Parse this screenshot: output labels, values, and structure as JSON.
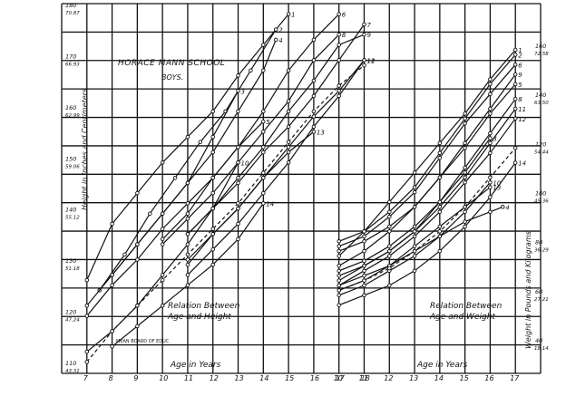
{
  "chart_data": {
    "type": "line",
    "title": "HORACE MANN SCHOOL",
    "subtitle": "BOYS.",
    "left_panel_label": [
      "Relation Between",
      "Age and Height"
    ],
    "right_panel_label": [
      "Relation Between",
      "Age and Weight"
    ],
    "small_note": "MEAN BOARD OF EDUC",
    "xlabel_left": "Age in Years",
    "xlabel_right": "Age in Years",
    "ylabel_left": "Height in Inches and Centimeters",
    "ylabel_right": "Weight in Pounds and Kilograms",
    "x_ticks_left": [
      "7",
      "8",
      "9",
      "10",
      "11",
      "12",
      "13",
      "14",
      "15",
      "16",
      "17",
      "18"
    ],
    "x_ticks_right": [
      "10",
      "11",
      "12",
      "13",
      "14",
      "15",
      "16",
      "17"
    ],
    "height_ticks": [
      {
        "cm": "110",
        "in": "43.31"
      },
      {
        "cm": "120",
        "in": "47.24"
      },
      {
        "cm": "130",
        "in": "51.18"
      },
      {
        "cm": "140",
        "in": "55.12"
      },
      {
        "cm": "150",
        "in": "59.06"
      },
      {
        "cm": "160",
        "in": "62.99"
      },
      {
        "cm": "170",
        "in": "66.93"
      },
      {
        "cm": "180",
        "in": "70.87"
      }
    ],
    "weight_ticks": [
      {
        "lb": "40",
        "kg": "18.14"
      },
      {
        "lb": "60",
        "kg": "27.21"
      },
      {
        "lb": "80",
        "kg": "36.29"
      },
      {
        "lb": "100",
        "kg": "45.36"
      },
      {
        "lb": "120",
        "kg": "54.44"
      },
      {
        "lb": "140",
        "kg": "63.50"
      },
      {
        "lb": "160",
        "kg": "72.58"
      }
    ],
    "height_curves": [
      {
        "label": "1",
        "dashed": false,
        "age": [
          7,
          8,
          9,
          10,
          11,
          12,
          13,
          14,
          15
        ],
        "height_cm": [
          127,
          138,
          144,
          150,
          155,
          160,
          167,
          173,
          179
        ]
      },
      {
        "label": "2",
        "dashed": false,
        "age": [
          7.5,
          8.5,
          9.5,
          10.5,
          11.5,
          12.5,
          13.5,
          14.5
        ],
        "height_cm": [
          125,
          132,
          140,
          147,
          154,
          160,
          168,
          176
        ]
      },
      {
        "label": "3",
        "dashed": false,
        "age": [
          7,
          8,
          9,
          10,
          11,
          12,
          13
        ],
        "height_cm": [
          122,
          128,
          134,
          140,
          146,
          155,
          164
        ]
      },
      {
        "label": "4",
        "dashed": false,
        "age": [
          8,
          9,
          10,
          11,
          12,
          13,
          14,
          14.5
        ],
        "height_cm": [
          128,
          134,
          140,
          146,
          152,
          160,
          168,
          174
        ]
      },
      {
        "label": "5",
        "dashed": false,
        "age": [
          7,
          8,
          9,
          10,
          11,
          12,
          13,
          14
        ],
        "height_cm": [
          120,
          126,
          131,
          137,
          142,
          147,
          153,
          158
        ]
      },
      {
        "label": "6",
        "dashed": false,
        "age": [
          10,
          11,
          12,
          13,
          14,
          15,
          16,
          17
        ],
        "height_cm": [
          135,
          140,
          147,
          153,
          160,
          168,
          174,
          179
        ]
      },
      {
        "label": "7",
        "dashed": false,
        "age": [
          11,
          12,
          13,
          14,
          15,
          16,
          17,
          18
        ],
        "height_cm": [
          136,
          141,
          146,
          152,
          157,
          163,
          170,
          177
        ]
      },
      {
        "label": "8",
        "dashed": false,
        "age": [
          10,
          11,
          12,
          13,
          14,
          15,
          16,
          17
        ],
        "height_cm": [
          134,
          139,
          144,
          150,
          156,
          162,
          170,
          175
        ]
      },
      {
        "label": "9",
        "dashed": false,
        "age": [
          11,
          12,
          13,
          14,
          15,
          16,
          17,
          18
        ],
        "height_cm": [
          136,
          141,
          147,
          153,
          160,
          166,
          173,
          175
        ]
      },
      {
        "label": "10",
        "dashed": false,
        "age": [
          7,
          8,
          9,
          10,
          11,
          12,
          13
        ],
        "height_cm": [
          113,
          117,
          122,
          128,
          134,
          141,
          150
        ]
      },
      {
        "label": "11",
        "dashed": false,
        "age": [
          11,
          12,
          13,
          14,
          15,
          16,
          17,
          18
        ],
        "height_cm": [
          131,
          136,
          141,
          147,
          153,
          159,
          164,
          170
        ]
      },
      {
        "label": "12",
        "dashed": false,
        "age": [
          11,
          12,
          13,
          14,
          15,
          16,
          17,
          18
        ],
        "height_cm": [
          128,
          133,
          138,
          144,
          150,
          157,
          163,
          170
        ]
      },
      {
        "label": "13",
        "dashed": false,
        "age": [
          11,
          12,
          13,
          14,
          15,
          16
        ],
        "height_cm": [
          130,
          136,
          141,
          147,
          152,
          156
        ]
      },
      {
        "label": "14",
        "dashed": false,
        "age": [
          8,
          9,
          10,
          11,
          12,
          13,
          14
        ],
        "height_cm": [
          114,
          118,
          122,
          126,
          130,
          135,
          142
        ]
      },
      {
        "label": "mean",
        "dashed": true,
        "age": [
          7,
          8,
          9,
          10,
          11,
          12,
          13,
          14,
          15,
          16,
          17,
          18
        ],
        "height_cm": [
          111,
          117,
          122,
          127,
          132,
          137,
          142,
          148,
          154,
          160,
          165,
          169
        ]
      }
    ],
    "weight_curves": [
      {
        "label": "1",
        "dashed": false,
        "age": [
          10,
          11,
          12,
          13,
          14,
          15,
          16,
          17
        ],
        "weight_lb": [
          76,
          86,
          98,
          110,
          122,
          134,
          148,
          160
        ]
      },
      {
        "label": "2",
        "dashed": false,
        "age": [
          10,
          11,
          12,
          13,
          14,
          15,
          16,
          17
        ],
        "weight_lb": [
          82,
          86,
          94,
          104,
          118,
          132,
          146,
          158
        ]
      },
      {
        "label": "3",
        "dashed": false,
        "age": [
          10,
          11,
          12,
          13,
          14,
          15,
          16
        ],
        "weight_lb": [
          70,
          74,
          80,
          88,
          98,
          110,
          124
        ]
      },
      {
        "label": "4",
        "dashed": false,
        "age": [
          10,
          11,
          12,
          13,
          14,
          15,
          16,
          16.5
        ],
        "weight_lb": [
          64,
          68,
          72,
          78,
          84,
          90,
          94,
          96
        ]
      },
      {
        "label": "5",
        "dashed": false,
        "age": [
          10,
          11,
          12,
          13,
          14,
          15,
          16,
          17
        ],
        "weight_lb": [
          72,
          78,
          86,
          96,
          108,
          120,
          134,
          146
        ]
      },
      {
        "label": "6",
        "dashed": false,
        "age": [
          10,
          11,
          12,
          13,
          14,
          15,
          16,
          17
        ],
        "weight_lb": [
          80,
          84,
          92,
          102,
          116,
          130,
          142,
          154
        ]
      },
      {
        "label": "8",
        "dashed": false,
        "age": [
          10,
          11,
          12,
          13,
          14,
          15,
          16,
          17
        ],
        "weight_lb": [
          66,
          72,
          78,
          86,
          98,
          112,
          126,
          140
        ]
      },
      {
        "label": "9",
        "dashed": false,
        "age": [
          10,
          11,
          12,
          13,
          14,
          15,
          16,
          17
        ],
        "weight_lb": [
          78,
          82,
          88,
          96,
          108,
          122,
          136,
          150
        ]
      },
      {
        "label": "10",
        "dashed": false,
        "age": [
          10,
          11,
          12,
          13,
          14,
          15,
          16
        ],
        "weight_lb": [
          60,
          64,
          70,
          76,
          84,
          94,
          106
        ]
      },
      {
        "label": "11",
        "dashed": false,
        "age": [
          10,
          11,
          12,
          13,
          14,
          15,
          16,
          17
        ],
        "weight_lb": [
          68,
          72,
          78,
          86,
          96,
          108,
          122,
          136
        ]
      },
      {
        "label": "12",
        "dashed": false,
        "age": [
          10,
          11,
          12,
          13,
          14,
          15,
          16,
          17
        ],
        "weight_lb": [
          64,
          70,
          76,
          84,
          94,
          106,
          118,
          132
        ]
      },
      {
        "label": "13",
        "dashed": false,
        "age": [
          10,
          11,
          12,
          13,
          14,
          15,
          16
        ],
        "weight_lb": [
          62,
          66,
          72,
          80,
          88,
          96,
          104
        ]
      },
      {
        "label": "14",
        "dashed": false,
        "age": [
          10,
          11,
          12,
          13,
          14,
          15,
          16,
          17
        ],
        "weight_lb": [
          56,
          60,
          64,
          70,
          78,
          88,
          100,
          114
        ]
      },
      {
        "label": "mean",
        "dashed": true,
        "age": [
          10,
          11,
          12,
          13,
          14,
          15,
          16,
          17
        ],
        "weight_lb": [
          62,
          66,
          71,
          78,
          86,
          96,
          108,
          120
        ]
      }
    ],
    "grid": true
  }
}
